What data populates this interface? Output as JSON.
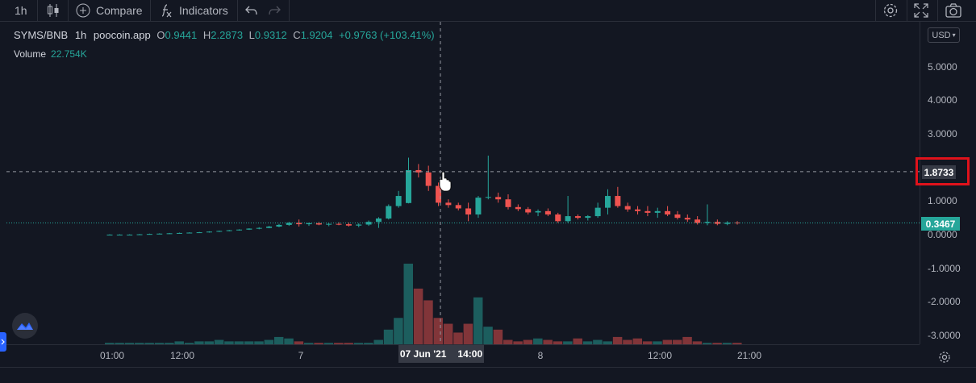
{
  "toolbar": {
    "interval": "1h",
    "compare_label": "Compare",
    "indicators_label": "Indicators"
  },
  "legend": {
    "symbol": "SYMS/BNB",
    "interval": "1h",
    "source": "poocoin.app",
    "o_label": "O",
    "o_value": "0.9441",
    "h_label": "H",
    "h_value": "2.2873",
    "l_label": "L",
    "l_value": "0.9312",
    "c_label": "C",
    "c_value": "1.9204",
    "change": "+0.9763 (+103.41%)",
    "volume_label": "Volume",
    "volume_value": "22.754K"
  },
  "price_axis": {
    "currency": "USD",
    "ticks": [
      "5.0000",
      "4.0000",
      "3.0000",
      "1.0000",
      "0.0000",
      "-1.0000",
      "-2.0000",
      "-3.0000"
    ],
    "crosshair_price": "1.8733",
    "last_price": "0.3467"
  },
  "time_axis": {
    "ticks": [
      "01:00",
      "12:00",
      "7",
      "8",
      "12:00",
      "21:00"
    ],
    "crosshair_date": "07 Jun '21",
    "crosshair_time": "14:00"
  },
  "colors": {
    "up": "#26a69a",
    "down": "#ef5350",
    "background": "#131722",
    "highlight": "#e0121b"
  },
  "chart_data": {
    "type": "candlestick",
    "y_ticks": [
      5.0,
      4.0,
      3.0,
      1.0,
      0.0,
      -1.0,
      -2.0,
      -3.0
    ],
    "crosshair_price": 1.8733,
    "last_price": 0.3467,
    "candles": [
      {
        "o": 0.0,
        "h": 0.01,
        "l": -0.01,
        "c": 0.0
      },
      {
        "o": 0.0,
        "h": 0.01,
        "l": -0.01,
        "c": 0.0
      },
      {
        "o": 0.0,
        "h": 0.01,
        "l": -0.01,
        "c": 0.0
      },
      {
        "o": 0.0,
        "h": 0.02,
        "l": -0.01,
        "c": 0.01
      },
      {
        "o": 0.01,
        "h": 0.03,
        "l": 0.0,
        "c": 0.02
      },
      {
        "o": 0.02,
        "h": 0.04,
        "l": 0.01,
        "c": 0.03
      },
      {
        "o": 0.03,
        "h": 0.05,
        "l": 0.02,
        "c": 0.04
      },
      {
        "o": 0.04,
        "h": 0.06,
        "l": 0.03,
        "c": 0.05
      },
      {
        "o": 0.05,
        "h": 0.07,
        "l": 0.04,
        "c": 0.06
      },
      {
        "o": 0.06,
        "h": 0.08,
        "l": 0.05,
        "c": 0.07
      },
      {
        "o": 0.07,
        "h": 0.1,
        "l": 0.06,
        "c": 0.09
      },
      {
        "o": 0.09,
        "h": 0.12,
        "l": 0.08,
        "c": 0.11
      },
      {
        "o": 0.11,
        "h": 0.14,
        "l": 0.1,
        "c": 0.13
      },
      {
        "o": 0.13,
        "h": 0.16,
        "l": 0.12,
        "c": 0.15
      },
      {
        "o": 0.15,
        "h": 0.19,
        "l": 0.14,
        "c": 0.18
      },
      {
        "o": 0.18,
        "h": 0.22,
        "l": 0.16,
        "c": 0.2
      },
      {
        "o": 0.2,
        "h": 0.26,
        "l": 0.19,
        "c": 0.24
      },
      {
        "o": 0.24,
        "h": 0.32,
        "l": 0.22,
        "c": 0.29
      },
      {
        "o": 0.29,
        "h": 0.38,
        "l": 0.26,
        "c": 0.35
      },
      {
        "o": 0.35,
        "h": 0.45,
        "l": 0.24,
        "c": 0.31
      },
      {
        "o": 0.31,
        "h": 0.36,
        "l": 0.26,
        "c": 0.34
      },
      {
        "o": 0.34,
        "h": 0.38,
        "l": 0.28,
        "c": 0.3
      },
      {
        "o": 0.3,
        "h": 0.34,
        "l": 0.25,
        "c": 0.32
      },
      {
        "o": 0.32,
        "h": 0.37,
        "l": 0.28,
        "c": 0.31
      },
      {
        "o": 0.31,
        "h": 0.36,
        "l": 0.24,
        "c": 0.27
      },
      {
        "o": 0.27,
        "h": 0.34,
        "l": 0.22,
        "c": 0.3
      },
      {
        "o": 0.3,
        "h": 0.42,
        "l": 0.26,
        "c": 0.38
      },
      {
        "o": 0.38,
        "h": 0.52,
        "l": 0.2,
        "c": 0.48
      },
      {
        "o": 0.48,
        "h": 0.9,
        "l": 0.45,
        "c": 0.85
      },
      {
        "o": 0.85,
        "h": 1.3,
        "l": 0.8,
        "c": 1.15
      },
      {
        "o": 0.94,
        "h": 2.29,
        "l": 0.93,
        "c": 1.92
      },
      {
        "o": 1.92,
        "h": 2.1,
        "l": 1.7,
        "c": 1.85
      },
      {
        "o": 1.85,
        "h": 2.05,
        "l": 1.3,
        "c": 1.45
      },
      {
        "o": 1.45,
        "h": 1.55,
        "l": 0.85,
        "c": 0.95
      },
      {
        "o": 0.95,
        "h": 1.05,
        "l": 0.8,
        "c": 0.88
      },
      {
        "o": 0.88,
        "h": 0.95,
        "l": 0.72,
        "c": 0.78
      },
      {
        "o": 0.78,
        "h": 0.95,
        "l": 0.4,
        "c": 0.6
      },
      {
        "o": 0.6,
        "h": 1.15,
        "l": 0.5,
        "c": 1.1
      },
      {
        "o": 1.1,
        "h": 2.35,
        "l": 1.05,
        "c": 1.12
      },
      {
        "o": 1.12,
        "h": 1.25,
        "l": 0.95,
        "c": 1.05
      },
      {
        "o": 1.05,
        "h": 1.2,
        "l": 0.75,
        "c": 0.82
      },
      {
        "o": 0.82,
        "h": 0.9,
        "l": 0.7,
        "c": 0.76
      },
      {
        "o": 0.76,
        "h": 0.82,
        "l": 0.6,
        "c": 0.66
      },
      {
        "o": 0.66,
        "h": 0.75,
        "l": 0.55,
        "c": 0.7
      },
      {
        "o": 0.7,
        "h": 0.78,
        "l": 0.55,
        "c": 0.6
      },
      {
        "o": 0.6,
        "h": 0.65,
        "l": 0.35,
        "c": 0.4
      },
      {
        "o": 0.4,
        "h": 1.15,
        "l": 0.35,
        "c": 0.55
      },
      {
        "o": 0.55,
        "h": 0.6,
        "l": 0.45,
        "c": 0.5
      },
      {
        "o": 0.5,
        "h": 0.58,
        "l": 0.42,
        "c": 0.55
      },
      {
        "o": 0.55,
        "h": 0.95,
        "l": 0.5,
        "c": 0.8
      },
      {
        "o": 0.8,
        "h": 1.35,
        "l": 0.6,
        "c": 1.15
      },
      {
        "o": 1.15,
        "h": 1.42,
        "l": 0.8,
        "c": 0.85
      },
      {
        "o": 0.85,
        "h": 0.95,
        "l": 0.68,
        "c": 0.75
      },
      {
        "o": 0.75,
        "h": 0.85,
        "l": 0.6,
        "c": 0.7
      },
      {
        "o": 0.7,
        "h": 0.85,
        "l": 0.55,
        "c": 0.65
      },
      {
        "o": 0.65,
        "h": 0.8,
        "l": 0.5,
        "c": 0.7
      },
      {
        "o": 0.7,
        "h": 0.85,
        "l": 0.55,
        "c": 0.6
      },
      {
        "o": 0.6,
        "h": 0.7,
        "l": 0.45,
        "c": 0.5
      },
      {
        "o": 0.5,
        "h": 0.6,
        "l": 0.38,
        "c": 0.45
      },
      {
        "o": 0.45,
        "h": 0.55,
        "l": 0.3,
        "c": 0.35
      },
      {
        "o": 0.35,
        "h": 0.9,
        "l": 0.28,
        "c": 0.38
      },
      {
        "o": 0.38,
        "h": 0.45,
        "l": 0.28,
        "c": 0.32
      },
      {
        "o": 0.32,
        "h": 0.4,
        "l": 0.28,
        "c": 0.36
      },
      {
        "o": 0.36,
        "h": 0.4,
        "l": 0.3,
        "c": 0.35
      }
    ],
    "volumes": [
      1,
      1,
      1,
      1,
      1,
      1,
      1,
      2,
      1,
      2,
      2,
      3,
      2,
      2,
      2,
      2,
      3,
      5,
      4,
      2,
      1,
      1,
      1,
      1,
      1,
      1,
      1,
      3,
      10,
      18,
      55,
      38,
      30,
      18,
      14,
      8,
      14,
      32,
      12,
      10,
      3,
      2,
      3,
      4,
      3,
      2,
      2,
      4,
      2,
      3,
      2,
      5,
      3,
      4,
      2,
      2,
      3,
      3,
      5,
      2,
      1,
      1,
      1,
      1
    ]
  }
}
